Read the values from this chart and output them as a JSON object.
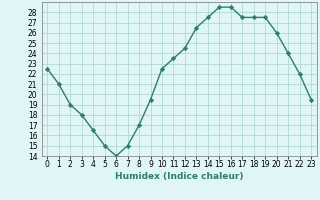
{
  "x": [
    0,
    1,
    2,
    3,
    4,
    5,
    6,
    7,
    8,
    9,
    10,
    11,
    12,
    13,
    14,
    15,
    16,
    17,
    18,
    19,
    20,
    21,
    22,
    23
  ],
  "y": [
    22.5,
    21.0,
    19.0,
    18.0,
    16.5,
    15.0,
    14.0,
    15.0,
    17.0,
    19.5,
    22.5,
    23.5,
    24.5,
    26.5,
    27.5,
    28.5,
    28.5,
    27.5,
    27.5,
    27.5,
    26.0,
    24.0,
    22.0,
    19.5
  ],
  "line_color": "#2e7d6e",
  "marker": "D",
  "markersize": 2.2,
  "linewidth": 1.0,
  "bg_color": "#e0f5f5",
  "grid_color": "#b0d8d8",
  "xlabel": "Humidex (Indice chaleur)",
  "xlabel_fontsize": 6.5,
  "tick_fontsize": 5.5,
  "ylim": [
    14,
    29
  ],
  "yticks": [
    14,
    15,
    16,
    17,
    18,
    19,
    20,
    21,
    22,
    23,
    24,
    25,
    26,
    27,
    28
  ],
  "xticks": [
    0,
    1,
    2,
    3,
    4,
    5,
    6,
    7,
    8,
    9,
    10,
    11,
    12,
    13,
    14,
    15,
    16,
    17,
    18,
    19,
    20,
    21,
    22,
    23
  ],
  "xlim": [
    -0.5,
    23.5
  ]
}
